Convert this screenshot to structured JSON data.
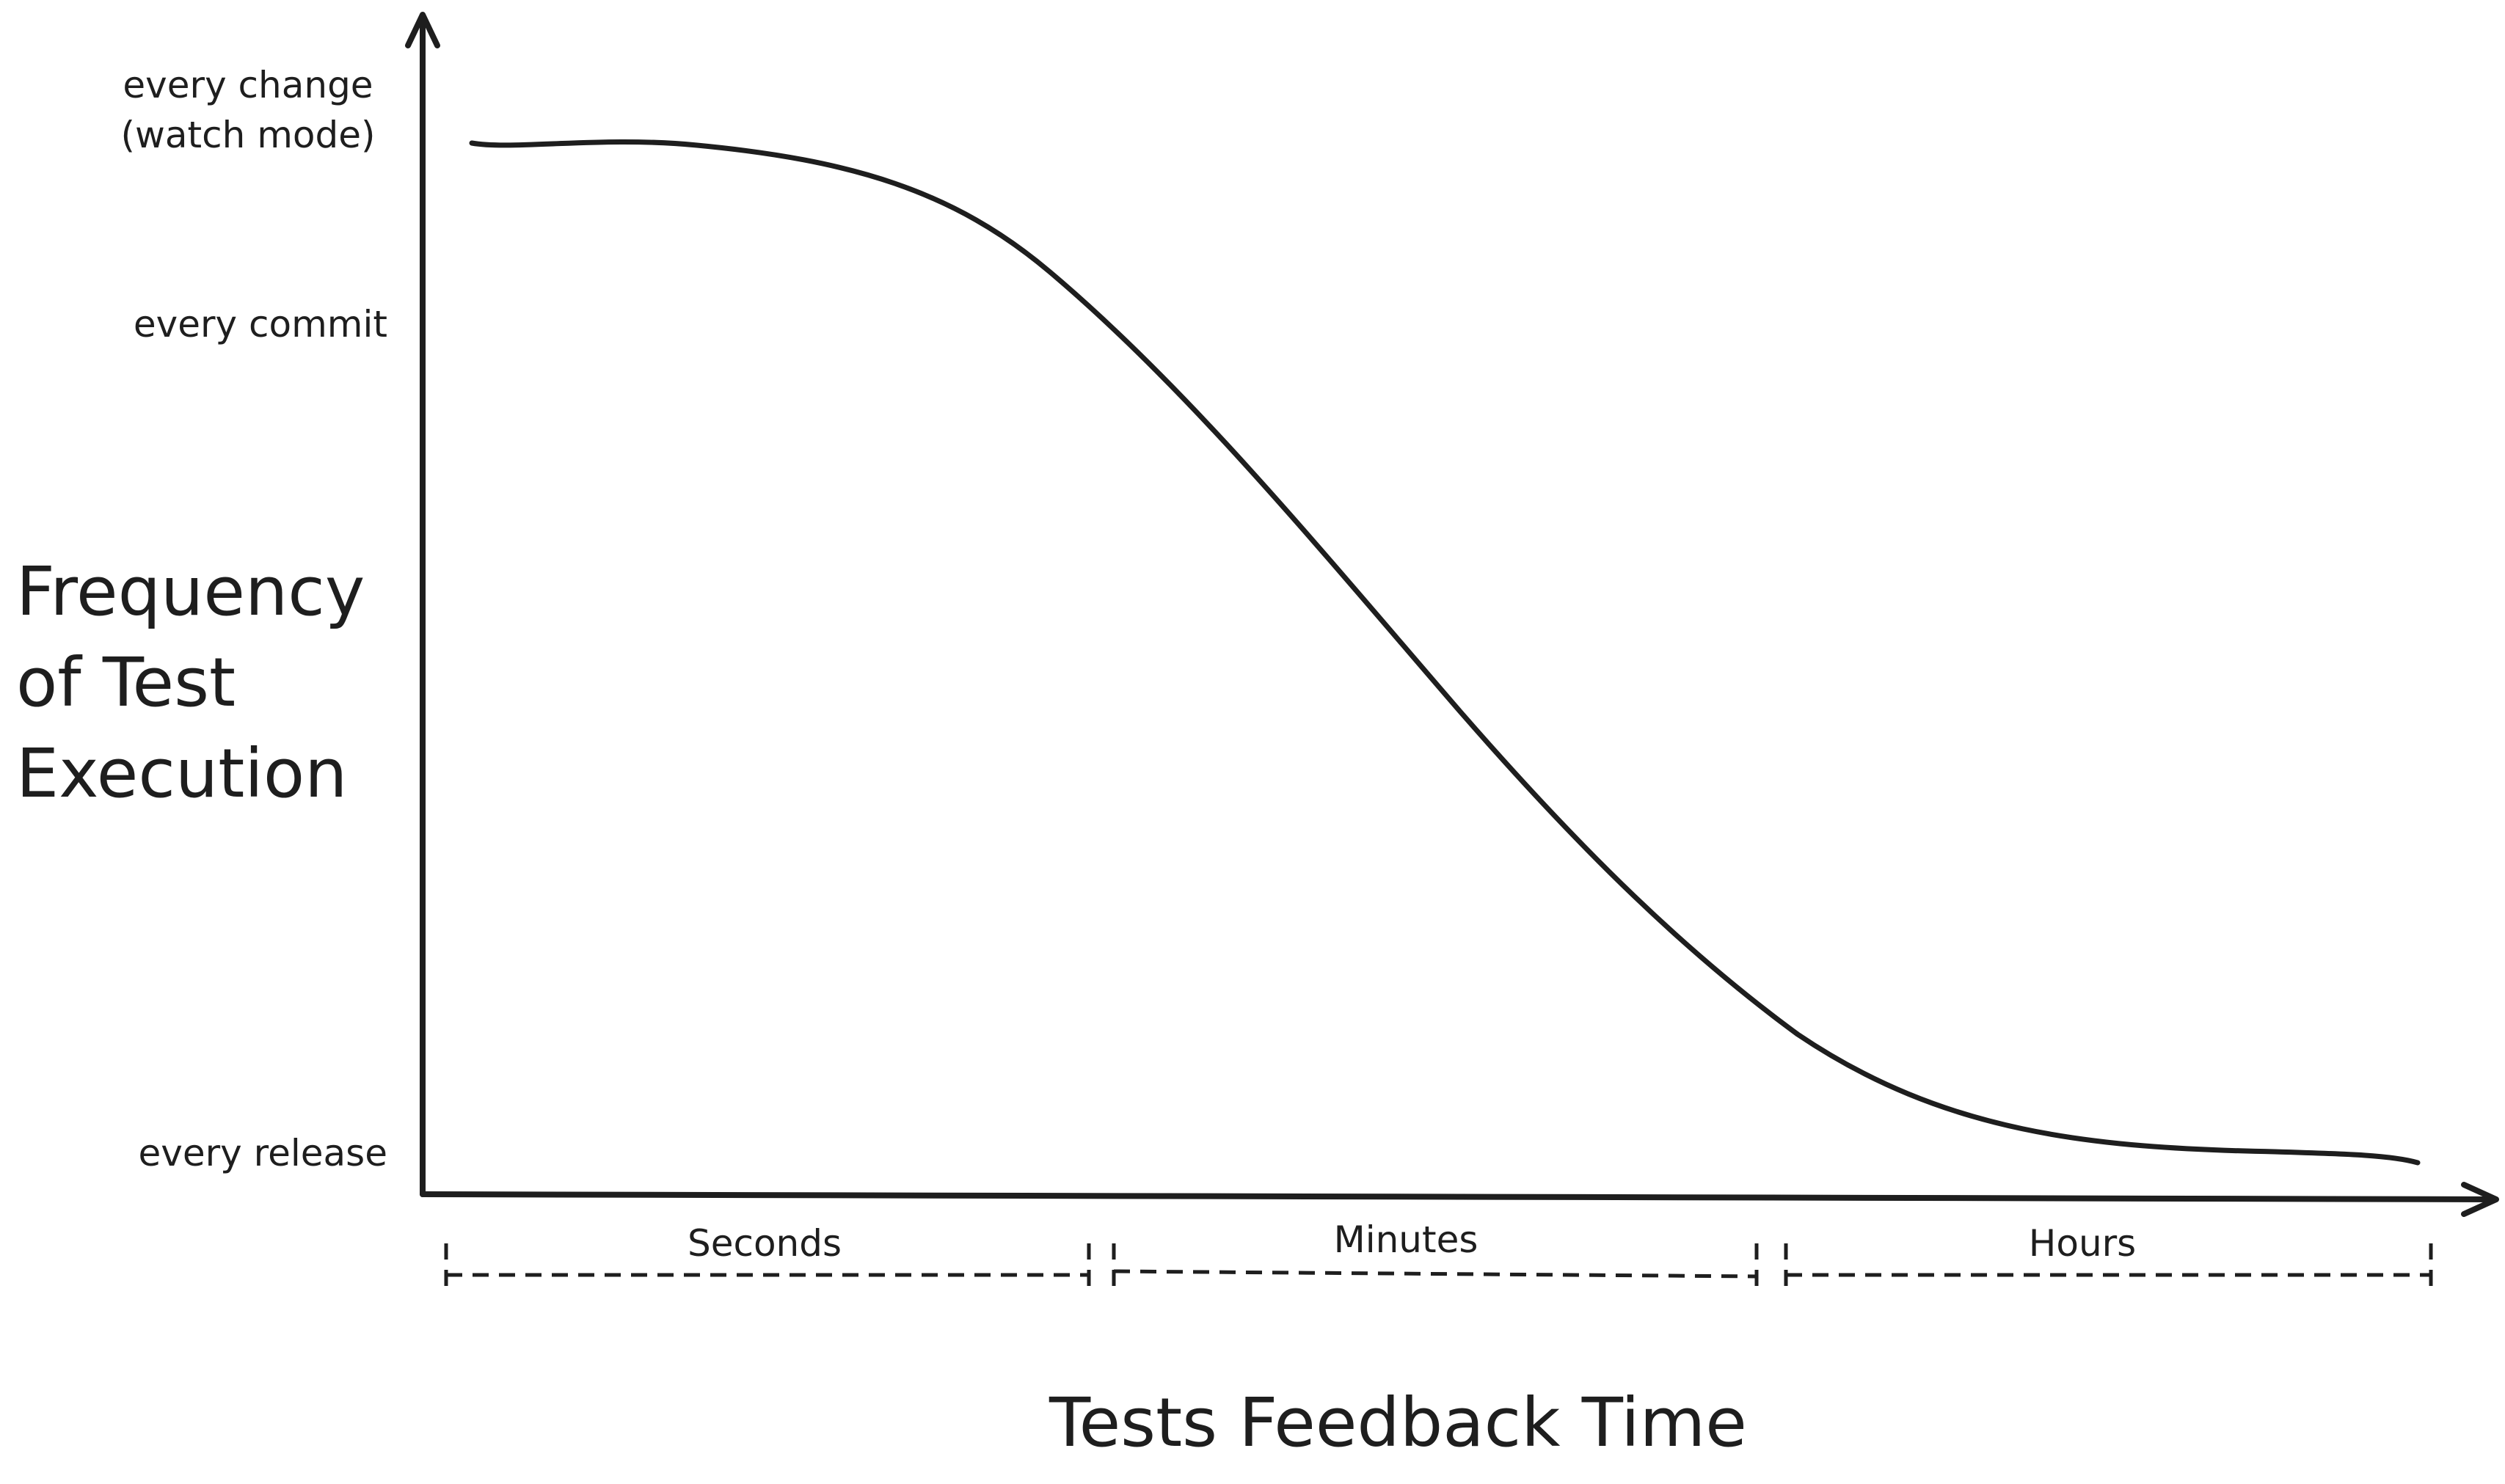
{
  "diagram": {
    "y_axis": {
      "label": "Frequency of Test Execution",
      "ticks": {
        "every_change": "every change (watch mode)",
        "every_commit": "every commit",
        "every_release": "every release"
      }
    },
    "x_axis": {
      "label": "Tests Feedback Time",
      "bands": {
        "seconds": "Seconds",
        "minutes": "Minutes",
        "hours": "Hours"
      }
    },
    "colors": {
      "stroke": "#1e1e1e",
      "background": "#ffffff"
    }
  }
}
